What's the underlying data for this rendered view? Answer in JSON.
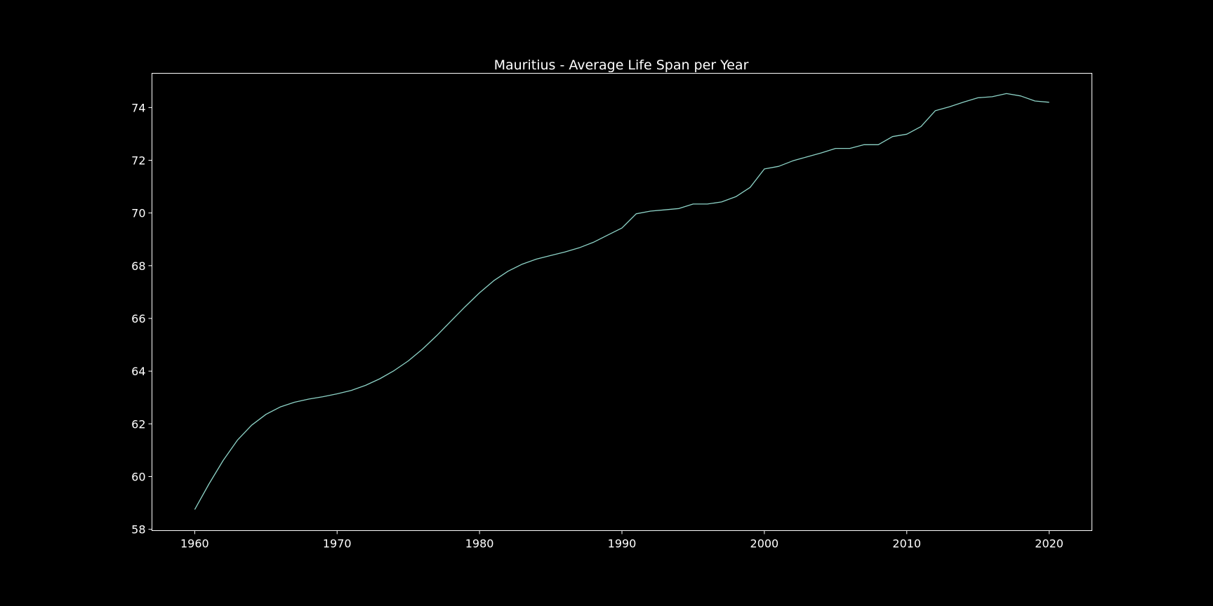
{
  "chart_data": {
    "type": "line",
    "title": "Mauritius - Average Life Span per Year",
    "xlabel": "",
    "ylabel": "",
    "xlim": [
      1957,
      2023
    ],
    "ylim": [
      57.95,
      75.3
    ],
    "xticks": [
      1960,
      1970,
      1980,
      1990,
      2000,
      2010,
      2020
    ],
    "yticks": [
      58,
      60,
      62,
      64,
      66,
      68,
      70,
      72,
      74
    ],
    "grid": false,
    "colors": {
      "background": "#000000",
      "line": "#8dd3c7",
      "axes": "#ffffff",
      "text": "#ffffff"
    },
    "series": [
      {
        "x": [
          1960,
          1961,
          1962,
          1963,
          1964,
          1965,
          1966,
          1967,
          1968,
          1969,
          1970,
          1971,
          1972,
          1973,
          1974,
          1975,
          1976,
          1977,
          1978,
          1979,
          1980,
          1981,
          1982,
          1983,
          1984,
          1985,
          1986,
          1987,
          1988,
          1989,
          1990,
          1991,
          1992,
          1993,
          1994,
          1995,
          1996,
          1997,
          1998,
          1999,
          2000,
          2001,
          2002,
          2003,
          2004,
          2005,
          2006,
          2007,
          2008,
          2009,
          2010,
          2011,
          2012,
          2013,
          2014,
          2015,
          2016,
          2017,
          2018,
          2019,
          2020
        ],
        "values": [
          58.75,
          59.72,
          60.61,
          61.38,
          61.95,
          62.36,
          62.64,
          62.82,
          62.94,
          63.03,
          63.14,
          63.27,
          63.46,
          63.71,
          64.02,
          64.39,
          64.84,
          65.35,
          65.9,
          66.45,
          66.97,
          67.43,
          67.79,
          68.06,
          68.25,
          68.39,
          68.52,
          68.68,
          68.89,
          69.16,
          69.43,
          69.97,
          70.07,
          70.12,
          70.17,
          70.34,
          70.34,
          70.42,
          70.62,
          70.97,
          71.67,
          71.77,
          71.98,
          72.13,
          72.28,
          72.45,
          72.45,
          72.59,
          72.59,
          72.9,
          72.99,
          73.28,
          73.88,
          74.03,
          74.21,
          74.37,
          74.41,
          74.53,
          74.44,
          74.25,
          74.2
        ]
      }
    ]
  }
}
